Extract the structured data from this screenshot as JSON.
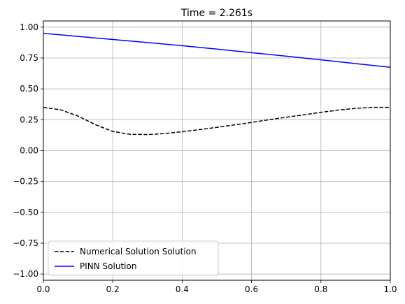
{
  "chart_data": {
    "type": "line",
    "title": "Time = 2.261s",
    "xlabel": "",
    "ylabel": "",
    "xlim": [
      0.0,
      1.0
    ],
    "ylim": [
      -1.05,
      1.05
    ],
    "grid": true,
    "legend_position": "lower-left",
    "xticks": [
      0.0,
      0.2,
      0.4,
      0.6,
      0.8,
      1.0
    ],
    "xtick_labels": [
      "0.0",
      "0.2",
      "0.4",
      "0.6",
      "0.8",
      "1.0"
    ],
    "yticks": [
      1.0,
      0.75,
      0.5,
      0.25,
      0.0,
      -0.25,
      -0.5,
      -0.75,
      -1.0
    ],
    "ytick_labels": [
      "1.00",
      "0.75",
      "0.50",
      "0.25",
      "0.00",
      "−0.25",
      "−0.50",
      "−0.75",
      "−1.00"
    ],
    "series": [
      {
        "name": "Numerical Solution Solution",
        "color": "#000000",
        "style": "dashed",
        "x": [
          0.0,
          0.05,
          0.1,
          0.15,
          0.2,
          0.25,
          0.3,
          0.35,
          0.4,
          0.45,
          0.5,
          0.55,
          0.6,
          0.65,
          0.7,
          0.75,
          0.8,
          0.85,
          0.9,
          0.95,
          1.0
        ],
        "y": [
          0.35,
          0.33,
          0.28,
          0.21,
          0.155,
          0.132,
          0.13,
          0.138,
          0.153,
          0.17,
          0.188,
          0.208,
          0.228,
          0.25,
          0.27,
          0.29,
          0.31,
          0.328,
          0.342,
          0.35,
          0.35
        ]
      },
      {
        "name": "PINN Solution",
        "color": "#0000ff",
        "style": "solid",
        "x": [
          0.0,
          0.1,
          0.2,
          0.3,
          0.4,
          0.5,
          0.6,
          0.7,
          0.8,
          0.9,
          1.0
        ],
        "y": [
          0.95,
          0.925,
          0.9,
          0.875,
          0.85,
          0.822,
          0.793,
          0.765,
          0.735,
          0.705,
          0.675
        ]
      }
    ]
  }
}
